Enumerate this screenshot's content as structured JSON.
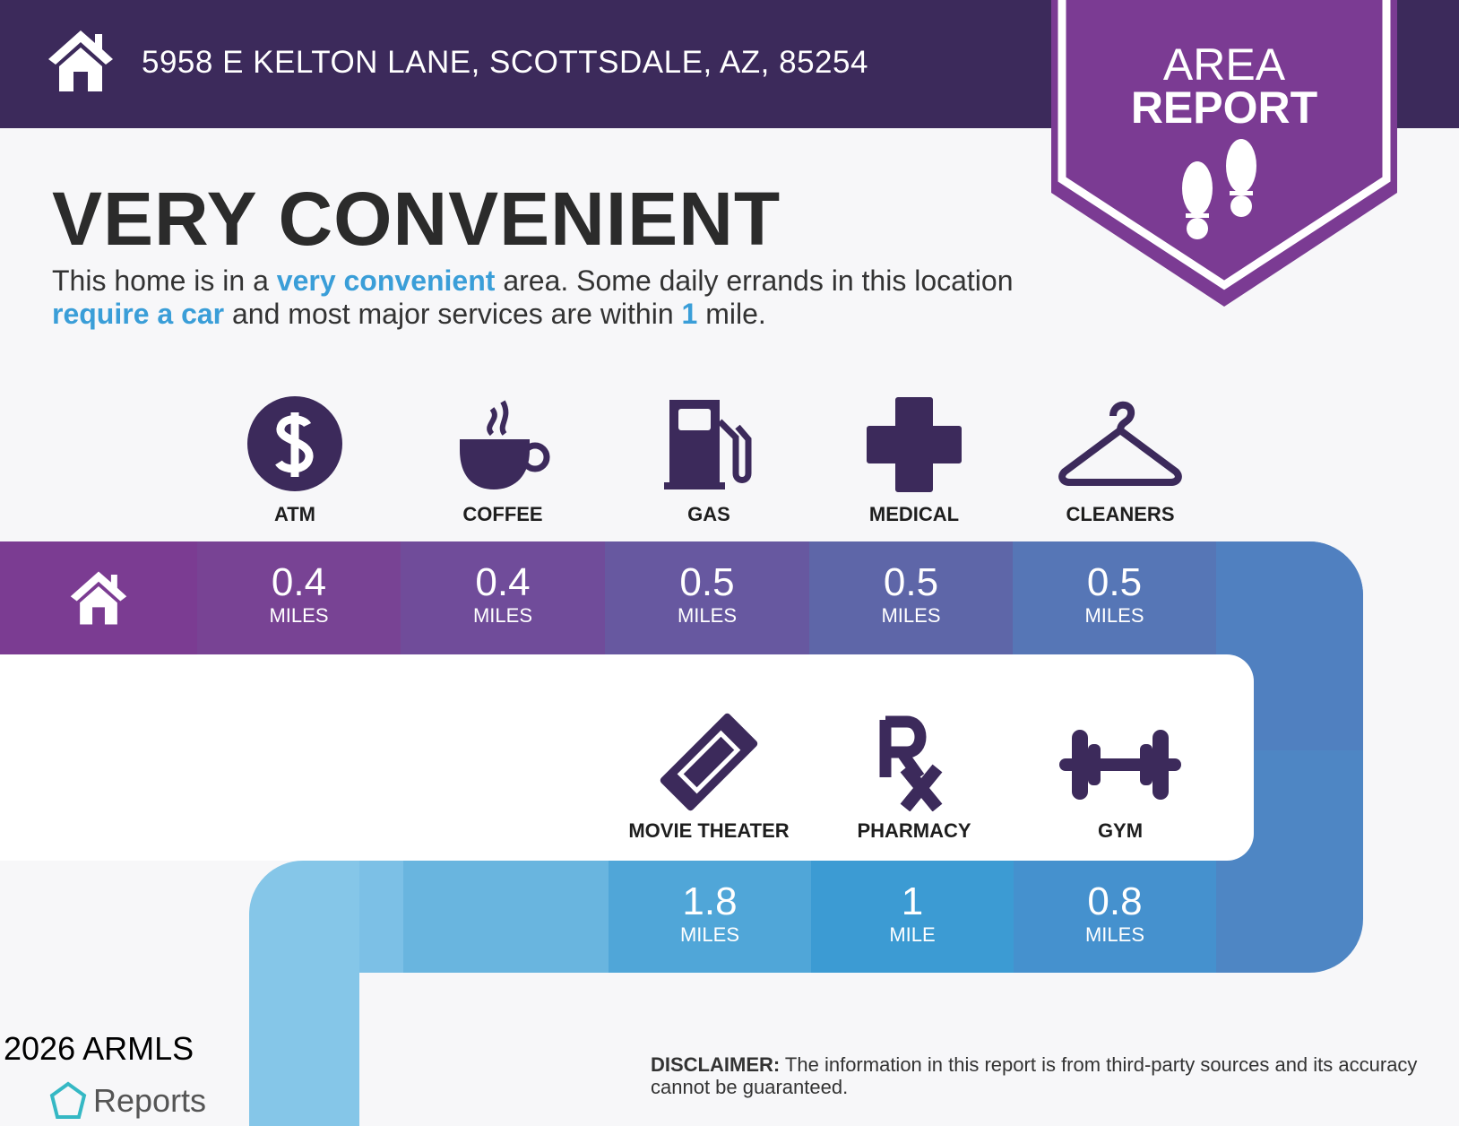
{
  "header": {
    "address": "5958 E KELTON LANE, SCOTTSDALE, AZ, 85254",
    "badge_line1": "AREA",
    "badge_line2": "REPORT"
  },
  "title": "VERY CONVENIENT",
  "description": {
    "p1": "This home is in a ",
    "h1": "very convenient",
    "p2": " area. Some daily errands in this location ",
    "h2": "require a car",
    "p3": " and most major services are within ",
    "h3": "1",
    "p4": " mile."
  },
  "colors": {
    "header": "#3c2a5b",
    "badge": "#7b3b93",
    "icon": "#3c2a5b",
    "highlight": "#3a9ed8"
  },
  "services": [
    {
      "name": "ATM",
      "icon": "dollar-icon",
      "distance": "0.4",
      "unit": "MILES"
    },
    {
      "name": "COFFEE",
      "icon": "coffee-cup-icon",
      "distance": "0.4",
      "unit": "MILES"
    },
    {
      "name": "GAS",
      "icon": "gas-pump-icon",
      "distance": "0.5",
      "unit": "MILES"
    },
    {
      "name": "MEDICAL",
      "icon": "medical-cross-icon",
      "distance": "0.5",
      "unit": "MILES"
    },
    {
      "name": "CLEANERS",
      "icon": "hanger-icon",
      "distance": "0.5",
      "unit": "MILES"
    },
    {
      "name": "MOVIE THEATER",
      "icon": "ticket-icon",
      "distance": "1.8",
      "unit": "MILES"
    },
    {
      "name": "PHARMACY",
      "icon": "rx-icon",
      "distance": "1",
      "unit": "MILE"
    },
    {
      "name": "GYM",
      "icon": "dumbbell-icon",
      "distance": "0.8",
      "unit": "MILES"
    }
  ],
  "disclaimer": {
    "label": "DISCLAIMER:",
    "text": " The information in this report is from third-party sources and its accuracy cannot be guaranteed."
  },
  "watermark": "2026 ARMLS",
  "logo_text": "Reports"
}
